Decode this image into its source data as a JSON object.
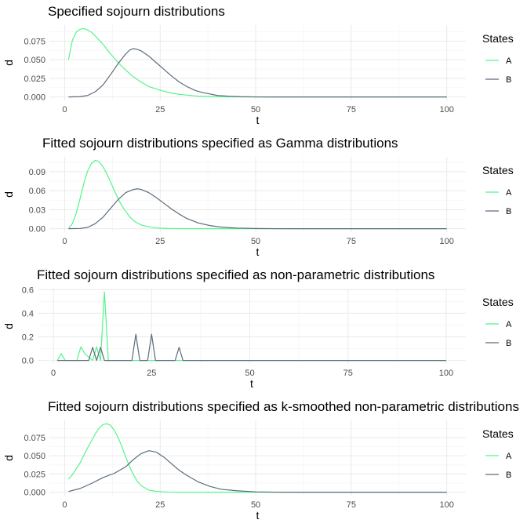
{
  "colors": {
    "A": "#52f58c",
    "B": "#5c6b7d",
    "grid_major": "#ebebeb",
    "grid_minor": "#f5f5f5"
  },
  "chart_data": [
    {
      "type": "line",
      "title": "Specified sojourn distributions",
      "xlabel": "t",
      "ylabel": "d",
      "xlim": [
        -4,
        105
      ],
      "ylim": [
        -0.0046,
        0.0966
      ],
      "xticks": [
        0,
        25,
        50,
        75,
        100
      ],
      "yticks": [
        0,
        0.025,
        0.05,
        0.075
      ],
      "ytick_labels": [
        "0.000",
        "0.025",
        "0.050",
        "0.075"
      ],
      "grid": true,
      "legend": {
        "title": "States",
        "position": "right",
        "entries": [
          "A",
          "B"
        ]
      },
      "series": [
        {
          "name": "A",
          "x": [
            1,
            2,
            3,
            4,
            5,
            6,
            7,
            8,
            10,
            12,
            14,
            16,
            18,
            20,
            22,
            25,
            28,
            31,
            35,
            40,
            45,
            50,
            60,
            70,
            80,
            90,
            100
          ],
          "values": [
            0.05,
            0.076,
            0.087,
            0.091,
            0.092,
            0.09,
            0.087,
            0.082,
            0.071,
            0.058,
            0.046,
            0.036,
            0.027,
            0.02,
            0.014,
            0.009,
            0.005,
            0.003,
            0.001,
            0.0004,
            0.0001,
            0,
            0,
            0,
            0,
            0,
            0
          ]
        },
        {
          "name": "B",
          "x": [
            1,
            4,
            6,
            8,
            10,
            12,
            14,
            16,
            17,
            18,
            19,
            20,
            22,
            24,
            26,
            28,
            30,
            32,
            34,
            36,
            38,
            40,
            43,
            46,
            50,
            55,
            60,
            70,
            80,
            90,
            100
          ],
          "values": [
            0,
            0.0004,
            0.002,
            0.007,
            0.016,
            0.03,
            0.045,
            0.058,
            0.063,
            0.065,
            0.064,
            0.062,
            0.055,
            0.046,
            0.037,
            0.028,
            0.02,
            0.014,
            0.009,
            0.006,
            0.004,
            0.002,
            0.001,
            0.0004,
            0.0001,
            0,
            0,
            0,
            0,
            0,
            0
          ]
        }
      ]
    },
    {
      "type": "line",
      "title": "Fitted sojourn distributions specified as Gamma distributions",
      "xlabel": "t",
      "ylabel": "d",
      "xlim": [
        -4,
        105
      ],
      "ylim": [
        -0.0054,
        0.1134
      ],
      "xticks": [
        0,
        25,
        50,
        75,
        100
      ],
      "yticks": [
        0,
        0.03,
        0.06,
        0.09
      ],
      "ytick_labels": [
        "0.00",
        "0.03",
        "0.06",
        "0.09"
      ],
      "grid": true,
      "legend": {
        "title": "States",
        "position": "right",
        "entries": [
          "A",
          "B"
        ]
      },
      "series": [
        {
          "name": "A",
          "x": [
            1,
            2,
            3,
            4,
            5,
            6,
            7,
            8,
            9,
            10,
            11,
            12,
            13,
            14,
            15,
            16,
            17,
            18,
            19,
            20,
            22,
            24,
            27,
            30,
            35,
            40,
            50,
            60,
            80,
            100
          ],
          "values": [
            0,
            0.008,
            0.024,
            0.047,
            0.071,
            0.091,
            0.103,
            0.108,
            0.106,
            0.098,
            0.087,
            0.074,
            0.06,
            0.047,
            0.036,
            0.027,
            0.019,
            0.013,
            0.009,
            0.006,
            0.003,
            0.001,
            0.0003,
            0.0001,
            0,
            0,
            0,
            0,
            0,
            0
          ]
        },
        {
          "name": "B",
          "x": [
            1,
            4,
            6,
            8,
            10,
            12,
            14,
            16,
            18,
            19,
            20,
            22,
            24,
            26,
            28,
            30,
            32,
            35,
            38,
            41,
            45,
            50,
            55,
            60,
            70,
            80,
            100
          ],
          "values": [
            0,
            0.0004,
            0.002,
            0.008,
            0.018,
            0.032,
            0.046,
            0.057,
            0.062,
            0.063,
            0.062,
            0.057,
            0.049,
            0.04,
            0.031,
            0.023,
            0.016,
            0.009,
            0.005,
            0.0025,
            0.001,
            0.0003,
            0.0001,
            0,
            0,
            0,
            0
          ]
        }
      ]
    },
    {
      "type": "line",
      "title": "Fitted sojourn distributions specified as non-parametric distributions",
      "xlabel": "t",
      "ylabel": "d",
      "xlim": [
        -4,
        105
      ],
      "ylim": [
        -0.029,
        0.609
      ],
      "xticks": [
        0,
        25,
        50,
        75,
        100
      ],
      "yticks": [
        0,
        0.2,
        0.4,
        0.6
      ],
      "ytick_labels": [
        "0.0",
        "0.2",
        "0.4",
        "0.6"
      ],
      "grid": true,
      "legend": {
        "title": "States",
        "position": "right",
        "entries": [
          "A",
          "B"
        ]
      },
      "series": [
        {
          "name": "A",
          "x": [
            1,
            2,
            3,
            6,
            7,
            8,
            10,
            11,
            12,
            13,
            14,
            100
          ],
          "values": [
            0,
            0.058,
            0,
            0,
            0.115,
            0.058,
            0,
            0.115,
            0,
            0.58,
            0,
            0
          ]
        },
        {
          "name": "B",
          "x": [
            1,
            9,
            10,
            11,
            12,
            13,
            20,
            21,
            22,
            24,
            25,
            26,
            31,
            32,
            33,
            100
          ],
          "values": [
            0,
            0,
            0.111,
            0,
            0.111,
            0,
            0,
            0.222,
            0,
            0,
            0.222,
            0,
            0,
            0.111,
            0,
            0
          ]
        }
      ]
    },
    {
      "type": "line",
      "title": "Fitted sojourn distributions specified as k-smoothed non-parametric distributions",
      "xlabel": "t",
      "ylabel": "d",
      "xlim": [
        -4,
        105
      ],
      "ylim": [
        -0.0047,
        0.0987
      ],
      "xticks": [
        0,
        25,
        50,
        75,
        100
      ],
      "yticks": [
        0,
        0.025,
        0.05,
        0.075
      ],
      "ytick_labels": [
        "0.000",
        "0.025",
        "0.050",
        "0.075"
      ],
      "grid": true,
      "legend": {
        "title": "States",
        "position": "right",
        "entries": [
          "A",
          "B"
        ]
      },
      "series": [
        {
          "name": "A",
          "x": [
            1,
            2,
            4,
            6,
            8,
            9,
            10,
            11,
            12,
            13,
            14,
            15,
            16,
            17,
            18,
            19,
            20,
            22,
            24,
            27,
            30,
            35,
            40,
            50,
            100
          ],
          "values": [
            0.018,
            0.024,
            0.04,
            0.061,
            0.08,
            0.088,
            0.093,
            0.094,
            0.092,
            0.085,
            0.075,
            0.062,
            0.048,
            0.035,
            0.024,
            0.015,
            0.009,
            0.003,
            0.001,
            0.0002,
            0,
            0,
            0,
            0,
            0
          ]
        },
        {
          "name": "B",
          "x": [
            1,
            4,
            7,
            10,
            13,
            16,
            18,
            20,
            22,
            24,
            26,
            28,
            30,
            32,
            35,
            38,
            41,
            45,
            50,
            55,
            60,
            70,
            80,
            100
          ],
          "values": [
            0.001,
            0.005,
            0.012,
            0.02,
            0.026,
            0.035,
            0.045,
            0.053,
            0.057,
            0.055,
            0.048,
            0.039,
            0.03,
            0.023,
            0.014,
            0.008,
            0.004,
            0.002,
            0.0005,
            0.0001,
            0,
            0,
            0,
            0
          ]
        }
      ]
    }
  ]
}
